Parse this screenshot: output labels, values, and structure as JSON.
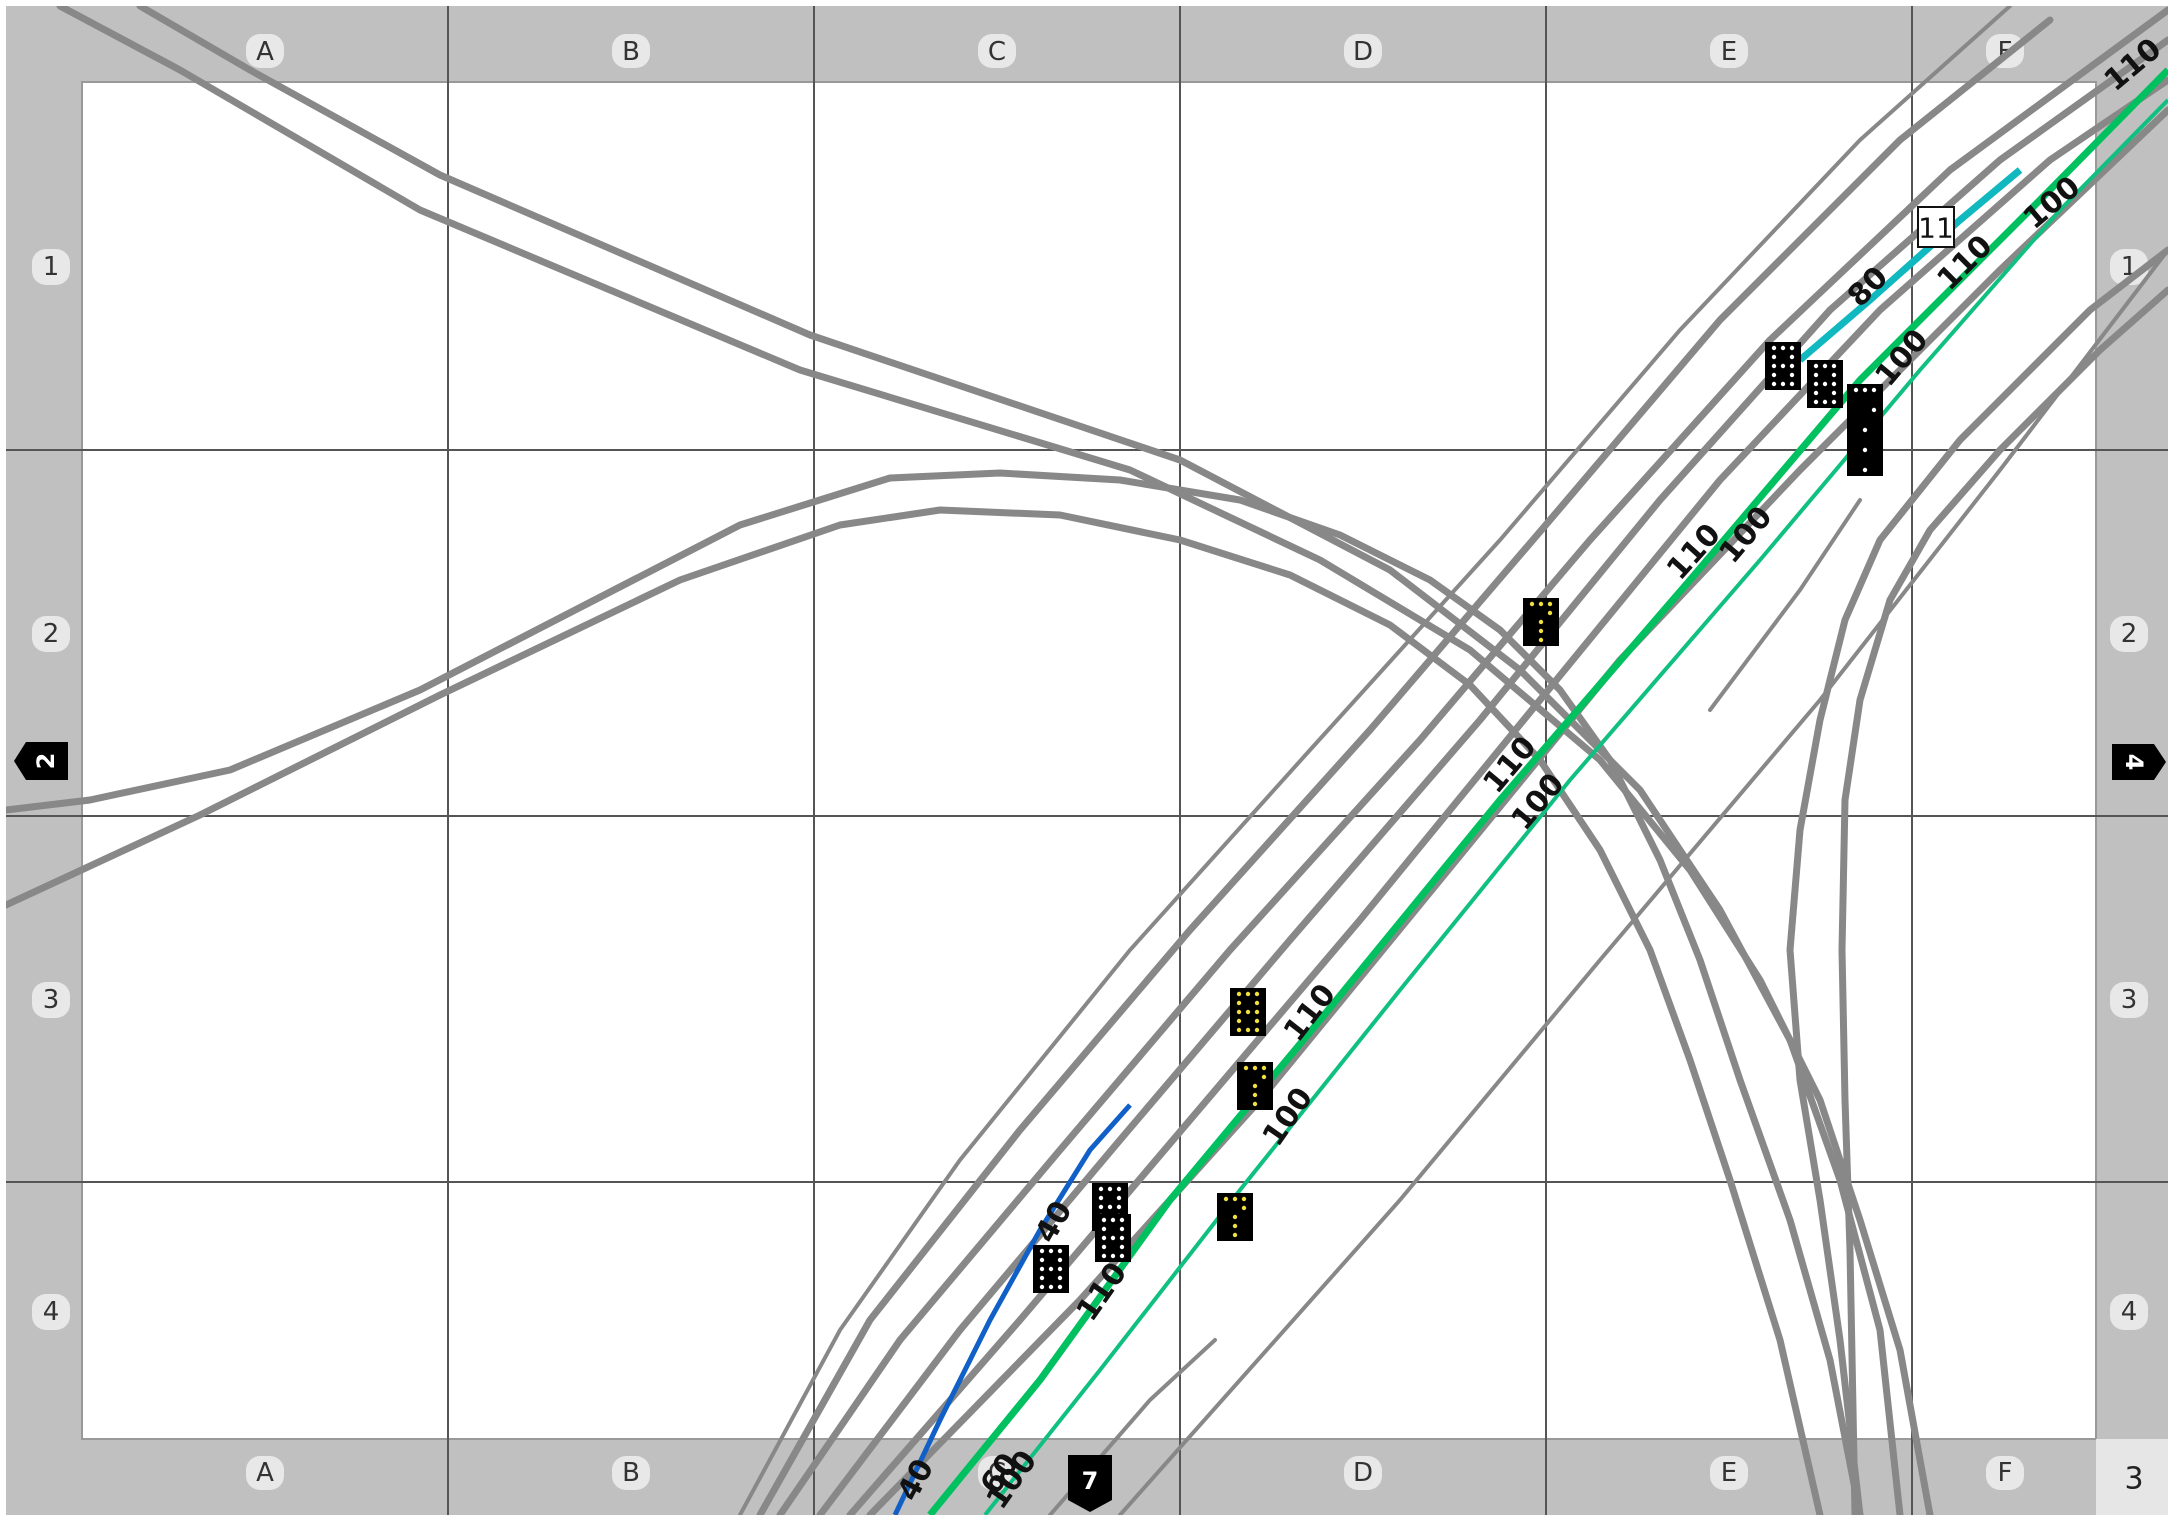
{
  "grid": {
    "columns": [
      "A",
      "B",
      "C",
      "D",
      "E",
      "F"
    ],
    "rows": [
      "1",
      "2",
      "3",
      "4"
    ]
  },
  "page_number": "3",
  "connectors": {
    "left": "2",
    "right": "4",
    "bottom": "7"
  },
  "station_marker": "11",
  "speed_labels": {
    "s1": "110",
    "s2": "100",
    "s3": "110",
    "s4": "80",
    "s5": "100",
    "s6": "110",
    "s7": "100",
    "s8": "110",
    "s9": "100",
    "s10": "110",
    "s11": "100",
    "s12": "40",
    "s13": "110",
    "s14": "40",
    "s15": "60",
    "s16": "100"
  },
  "colors": {
    "frame": "#c0c0c0",
    "track": "#888888",
    "speed_110": "#00c060",
    "speed_100": "#10c080",
    "speed_80": "#10b8c0",
    "speed_40": "#1060c8",
    "signal_lamp_white": "#ffffff",
    "signal_lamp_yellow": "#f0e040"
  },
  "signals": [
    {
      "digit": "8",
      "lamp": "white"
    },
    {
      "digit": "8",
      "lamp": "white"
    },
    {
      "digit": "7",
      "lamp": "white"
    },
    {
      "digit": "7",
      "lamp": "yellow"
    },
    {
      "digit": "8",
      "lamp": "yellow"
    },
    {
      "digit": "7",
      "lamp": "yellow"
    },
    {
      "digit": "8",
      "lamp": "white"
    },
    {
      "digit": "8",
      "lamp": "white"
    },
    {
      "digit": "7",
      "lamp": "yellow"
    },
    {
      "digit": "8",
      "lamp": "white"
    }
  ]
}
